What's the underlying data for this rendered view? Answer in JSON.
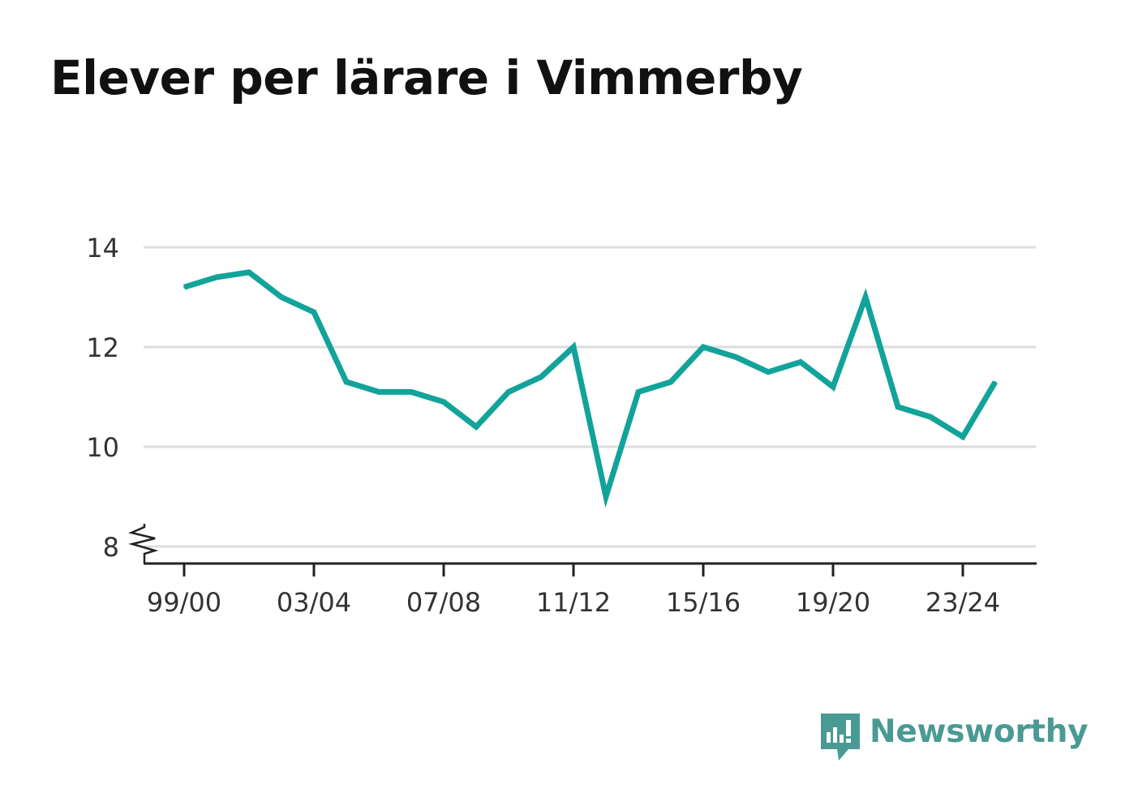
{
  "title": "Elever per lärare i Vimmerby",
  "brand": {
    "name": "Newsworthy",
    "logo_icon": "newsworthy-logo-icon",
    "color": "#4a9a94"
  },
  "chart_data": {
    "type": "line",
    "title": "Elever per lärare i Vimmerby",
    "xlabel": "",
    "ylabel": "",
    "ylim": [
      8,
      14
    ],
    "y_axis_break": true,
    "y_ticks": [
      8,
      10,
      12,
      14
    ],
    "grid": true,
    "legend": "none",
    "line_color": "#12a39a",
    "x_tick_labels": [
      "99/00",
      "03/04",
      "07/08",
      "11/12",
      "15/16",
      "19/20",
      "23/24"
    ],
    "categories": [
      "99/00",
      "00/01",
      "01/02",
      "02/03",
      "03/04",
      "04/05",
      "05/06",
      "06/07",
      "07/08",
      "08/09",
      "09/10",
      "10/11",
      "11/12",
      "12/13",
      "13/14",
      "14/15",
      "15/16",
      "16/17",
      "17/18",
      "18/19",
      "19/20",
      "20/21",
      "21/22",
      "22/23",
      "23/24",
      "24/25"
    ],
    "series": [
      {
        "values": [
          13.2,
          13.4,
          13.5,
          13.0,
          12.7,
          11.3,
          11.1,
          11.1,
          10.9,
          10.4,
          11.1,
          11.4,
          12.0,
          9.0,
          11.1,
          11.3,
          12.0,
          11.8,
          11.5,
          11.7,
          11.2,
          13.0,
          10.8,
          10.6,
          10.2,
          11.3
        ]
      }
    ]
  }
}
